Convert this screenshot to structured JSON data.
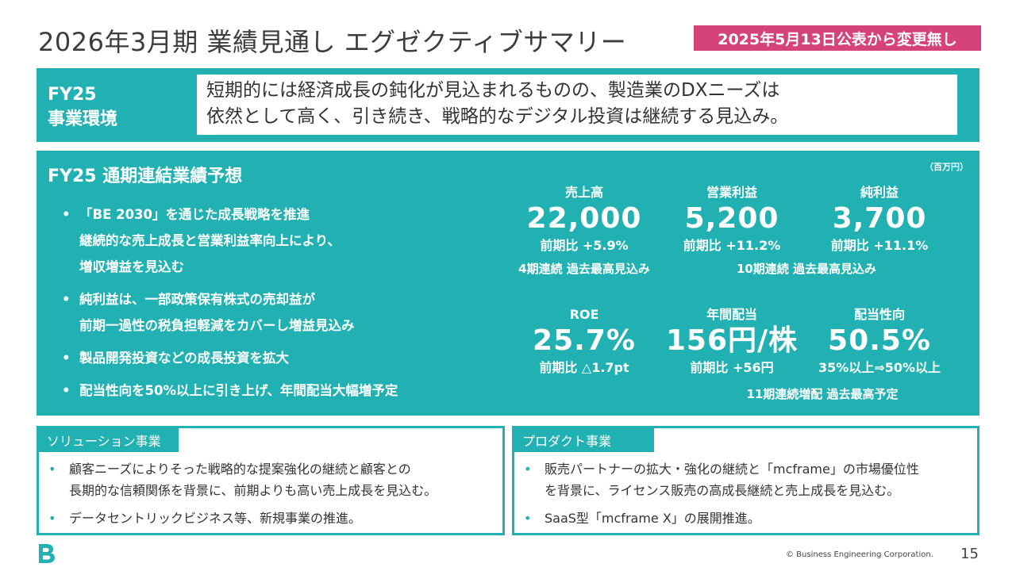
{
  "header": {
    "title": "2026年3月期 業績見通し エグゼクティブサマリー",
    "notice": "2025年5月13日公表から変更無し"
  },
  "environment": {
    "label_line1": "FY25",
    "label_line2": "事業環境",
    "text_line1": "短期的には経済成長の鈍化が見込まれるものの、製造業のDXニーズは",
    "text_line2": "依然として高く、引き続き、戦略的なデジタル投資は継続する見込み。"
  },
  "forecast": {
    "title": "FY25 通期連結業績予想",
    "unit": "（百万円）",
    "bullets": [
      {
        "lines": [
          "「BE 2030」を通じた成長戦略を推進",
          "継続的な売上成長と営業利益率向上により、",
          "増収増益を見込む"
        ]
      },
      {
        "lines": [
          "純利益は、一部政策保有株式の売却益が",
          "前期一過性の税負担軽減をカバーし増益見込み"
        ]
      },
      {
        "lines": [
          "製品開発投資などの成長投資を拡大"
        ]
      },
      {
        "lines": [
          "配当性向を50%以上に引き上げ、年間配当大幅増予定"
        ]
      }
    ],
    "metrics": [
      {
        "label": "売上高",
        "value": "22,000",
        "sub": "前期比 +5.9%"
      },
      {
        "label": "営業利益",
        "value": "5,200",
        "sub": "前期比 +11.2%"
      },
      {
        "label": "純利益",
        "value": "3,700",
        "sub": "前期比 +11.1%"
      },
      {
        "label": "ROE",
        "value": "25.7%",
        "sub": "前期比 △1.7pt"
      },
      {
        "label": "年間配当",
        "value": "156円/株",
        "sub": "前期比 +56円"
      },
      {
        "label": "配当性向",
        "value": "50.5%",
        "sub": "35%以上⇒50%以上"
      }
    ],
    "notes": {
      "sales": "4期連続 過去最高見込み",
      "profit": "10期連続 過去最高見込み",
      "dividend": "11期連続増配 過去最高予定"
    }
  },
  "segments": {
    "solution": {
      "title": "ソリューション事業",
      "items": [
        [
          "顧客ニーズによりそった戦略的な提案強化の継続と顧客との",
          "長期的な信頼関係を背景に、前期よりも高い売上成長を見込む。"
        ],
        [
          "データセントリックビジネス等、新規事業の推進。"
        ]
      ]
    },
    "product": {
      "title": "プロダクト事業",
      "items": [
        [
          "販売パートナーの拡大・強化の継続と「mcframe」の市場優位性",
          "を背景に、ライセンス販売の高成長継続と売上成長を見込む。"
        ],
        [
          "SaaS型「mcframe X」の展開推進。"
        ]
      ]
    }
  },
  "footer": {
    "logo_letter": "B",
    "copyright": "© Business Engineering Corporation.",
    "page": "15"
  },
  "colors": {
    "teal": "#22b1b3",
    "pink": "#d6427a"
  }
}
